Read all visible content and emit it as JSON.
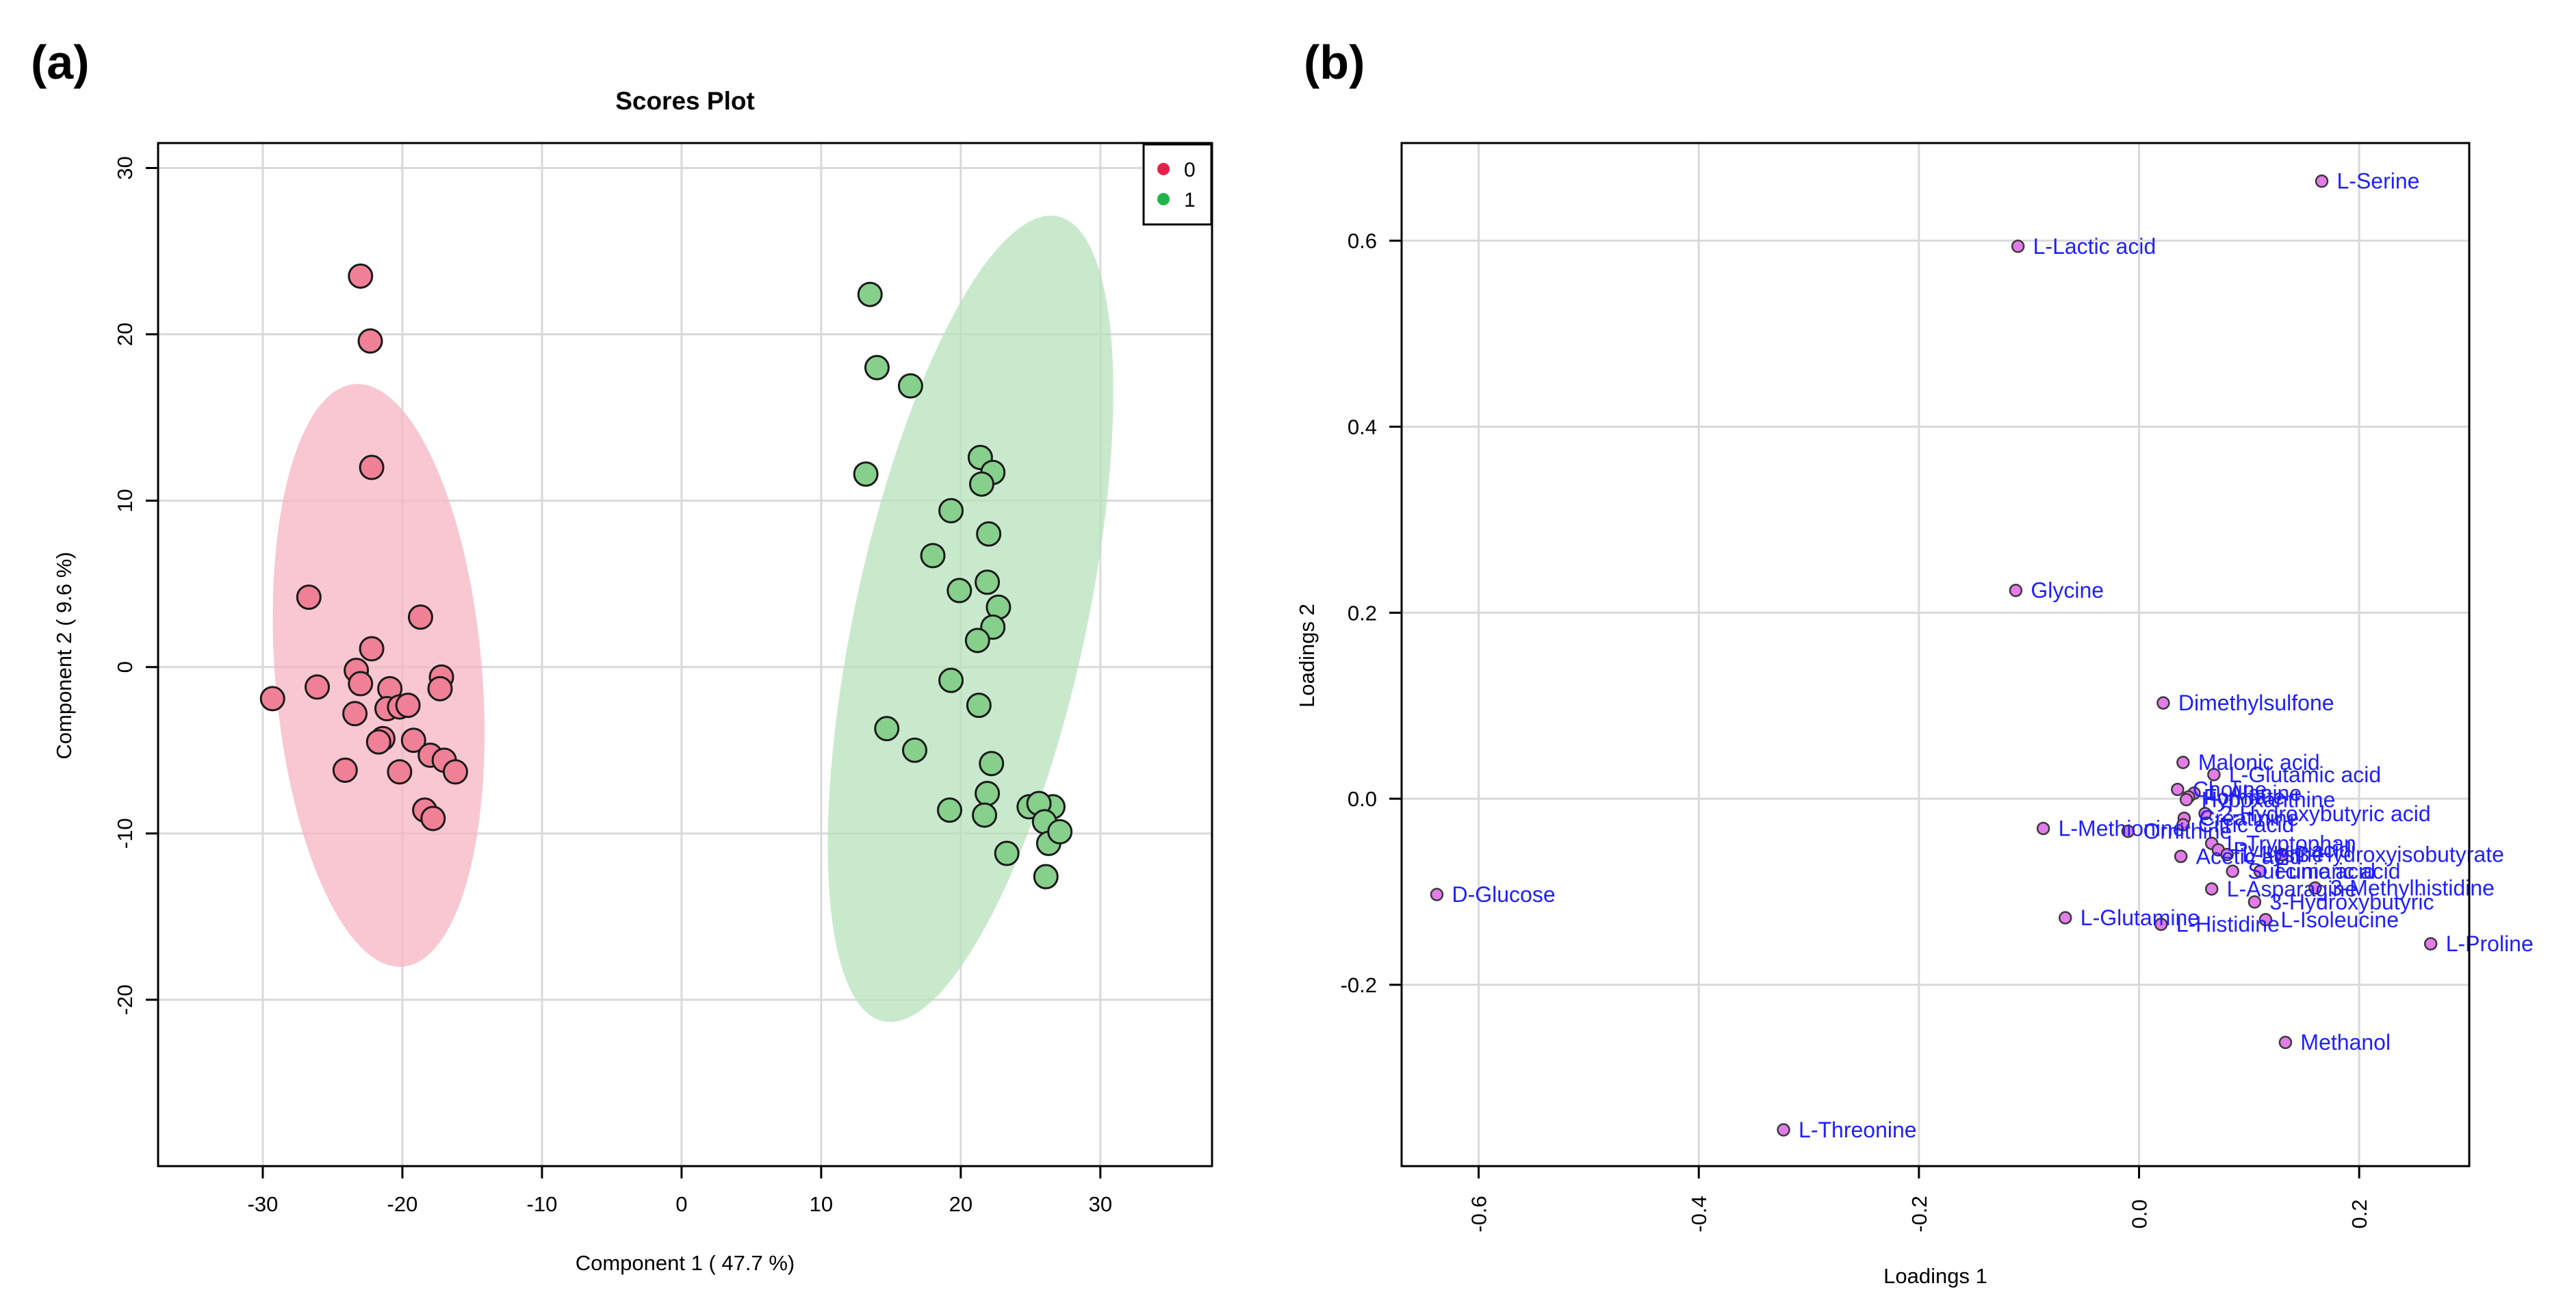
{
  "panels": {
    "a_label": "(a)",
    "b_label": "(b)"
  },
  "colors": {
    "group0_fill": "#f08096",
    "group0_ellipse": "#f6b4c2",
    "group1_fill": "#86d08c",
    "group1_ellipse": "#b7e2bb",
    "legend0_dot": "#e8214a",
    "legend1_dot": "#22b34a",
    "loading_point": "#e37ce8",
    "loading_text": "#1f1fff"
  },
  "chart_data": [
    {
      "type": "scatter",
      "title": "Scores Plot",
      "xlabel": "Component 1 ( 47.7 %)",
      "ylabel": "Component 2 ( 9.6 %)",
      "xlim": [
        -37.5,
        38
      ],
      "ylim": [
        -30,
        31.5
      ],
      "xticks": [
        -30,
        -20,
        -10,
        0,
        10,
        20,
        30
      ],
      "yticks": [
        30,
        20,
        10,
        0,
        -10,
        -20
      ],
      "legend": {
        "position": "top-right",
        "entries": [
          "0",
          "1"
        ]
      },
      "series": [
        {
          "name": "0",
          "ellipse": {
            "center": [
              -21.7,
              -0.5
            ],
            "semi_major": 17.6,
            "semi_minor": 7.4,
            "angle_deg": 96
          },
          "points": [
            [
              -23,
              23.5
            ],
            [
              -22.3,
              19.6
            ],
            [
              -22.2,
              12
            ],
            [
              -26.7,
              4.2
            ],
            [
              -18.7,
              3
            ],
            [
              -22.2,
              1.1
            ],
            [
              -29.3,
              -1.9
            ],
            [
              -26.1,
              -1.2
            ],
            [
              -23.3,
              -0.2
            ],
            [
              -23,
              -1
            ],
            [
              -20.9,
              -1.3
            ],
            [
              -17.2,
              -0.6
            ],
            [
              -17.3,
              -1.3
            ],
            [
              -23.4,
              -2.8
            ],
            [
              -21.1,
              -2.5
            ],
            [
              -20.2,
              -2.4
            ],
            [
              -19.6,
              -2.3
            ],
            [
              -21.4,
              -4.3
            ],
            [
              -21.7,
              -4.5
            ],
            [
              -19.2,
              -4.4
            ],
            [
              -24.1,
              -6.2
            ],
            [
              -20.2,
              -6.3
            ],
            [
              -18,
              -5.3
            ],
            [
              -17,
              -5.6
            ],
            [
              -16.2,
              -6.3
            ],
            [
              -18.4,
              -8.6
            ],
            [
              -17.8,
              -9.1
            ]
          ]
        },
        {
          "name": "1",
          "ellipse": {
            "center": [
              20.7,
              2.9
            ],
            "semi_major": 25,
            "semi_minor": 8.2,
            "angle_deg": 75
          },
          "points": [
            [
              13.5,
              22.4
            ],
            [
              14,
              18
            ],
            [
              16.4,
              16.9
            ],
            [
              13.2,
              11.6
            ],
            [
              21.4,
              12.6
            ],
            [
              22.3,
              11.7
            ],
            [
              21.5,
              11
            ],
            [
              19.3,
              9.4
            ],
            [
              22,
              8
            ],
            [
              18,
              6.7
            ],
            [
              21.9,
              5.1
            ],
            [
              19.9,
              4.6
            ],
            [
              22.7,
              3.6
            ],
            [
              22.3,
              2.4
            ],
            [
              21.2,
              1.6
            ],
            [
              19.3,
              -0.8
            ],
            [
              21.3,
              -2.3
            ],
            [
              14.7,
              -3.7
            ],
            [
              16.7,
              -5
            ],
            [
              22.2,
              -5.8
            ],
            [
              21.9,
              -7.6
            ],
            [
              26.6,
              -8.4
            ],
            [
              24.9,
              -8.4
            ],
            [
              25.6,
              -8.2
            ],
            [
              26,
              -9.3
            ],
            [
              19.2,
              -8.6
            ],
            [
              21.7,
              -8.9
            ],
            [
              26.3,
              -10.6
            ],
            [
              27.1,
              -9.9
            ],
            [
              23.3,
              -11.2
            ],
            [
              26.1,
              -12.6
            ]
          ]
        }
      ]
    },
    {
      "type": "scatter",
      "title": "",
      "xlabel": "Loadings 1",
      "ylabel": "Loadings 2",
      "xlim": [
        -0.67,
        0.3
      ],
      "ylim": [
        -0.395,
        0.705
      ],
      "xticks": [
        -0.6,
        -0.4,
        -0.2,
        0.0,
        0.2
      ],
      "xtick_labels": [
        "-0.6",
        "-0.4",
        "-0.2",
        "0.0",
        "0.2"
      ],
      "yticks": [
        0.6,
        0.4,
        0.2,
        0.0,
        -0.2
      ],
      "ytick_labels": [
        "0.6",
        "0.4",
        "0.2",
        "0.0",
        "-0.2"
      ],
      "points": [
        {
          "label": "L-Serine",
          "x": 0.166,
          "y": 0.664
        },
        {
          "label": "L-Lactic acid",
          "x": -0.11,
          "y": 0.594
        },
        {
          "label": "Glycine",
          "x": -0.112,
          "y": 0.224
        },
        {
          "label": "Dimethylsulfone",
          "x": 0.022,
          "y": 0.103
        },
        {
          "label": "Malonic acid",
          "x": 0.04,
          "y": 0.039
        },
        {
          "label": "L-Glutamic acid",
          "x": 0.068,
          "y": 0.026
        },
        {
          "label": "Choline",
          "x": 0.035,
          "y": 0.01
        },
        {
          "label": "L-Alanine",
          "x": 0.05,
          "y": 0.006
        },
        {
          "label": "Formate",
          "x": 0.045,
          "y": 0.002
        },
        {
          "label": "Hypoxanthine",
          "x": 0.043,
          "y": -0.001
        },
        {
          "label": "2-Hydroxybutyric acid",
          "x": 0.06,
          "y": -0.016
        },
        {
          "label": "Creatinine",
          "x": 0.041,
          "y": -0.021
        },
        {
          "label": "L-Methionine",
          "x": -0.087,
          "y": -0.032
        },
        {
          "label": "Ornithine",
          "x": -0.01,
          "y": -0.035
        },
        {
          "label": "Citric acid",
          "x": 0.04,
          "y": -0.028
        },
        {
          "label": "L-Tryptophan",
          "x": 0.066,
          "y": -0.048
        },
        {
          "label": "Acetic acid",
          "x": 0.038,
          "y": -0.062
        },
        {
          "label": "Pyruvic acid",
          "x": 0.072,
          "y": -0.055
        },
        {
          "label": "L-Lysine",
          "x": 0.08,
          "y": -0.06
        },
        {
          "label": "3-Hydroxyisobutyrate",
          "x": 0.13,
          "y": -0.06
        },
        {
          "label": "Succinic acid",
          "x": 0.085,
          "y": -0.078
        },
        {
          "label": "Fumaric acid",
          "x": 0.11,
          "y": -0.078
        },
        {
          "label": "L-Asparagine",
          "x": 0.066,
          "y": -0.097
        },
        {
          "label": "3-Methylhistidine",
          "x": 0.16,
          "y": -0.096
        },
        {
          "label": "3-Hydroxybutyric",
          "x": 0.105,
          "y": -0.111
        },
        {
          "label": "D-Glucose",
          "x": -0.638,
          "y": -0.103
        },
        {
          "label": "L-Glutamine",
          "x": -0.067,
          "y": -0.128
        },
        {
          "label": "L-Histidine",
          "x": 0.02,
          "y": -0.135
        },
        {
          "label": "L-Isoleucine",
          "x": 0.115,
          "y": -0.13
        },
        {
          "label": "L-Proline",
          "x": 0.265,
          "y": -0.156
        },
        {
          "label": "Methanol",
          "x": 0.133,
          "y": -0.262
        },
        {
          "label": "L-Threonine",
          "x": -0.323,
          "y": -0.356
        }
      ]
    }
  ]
}
